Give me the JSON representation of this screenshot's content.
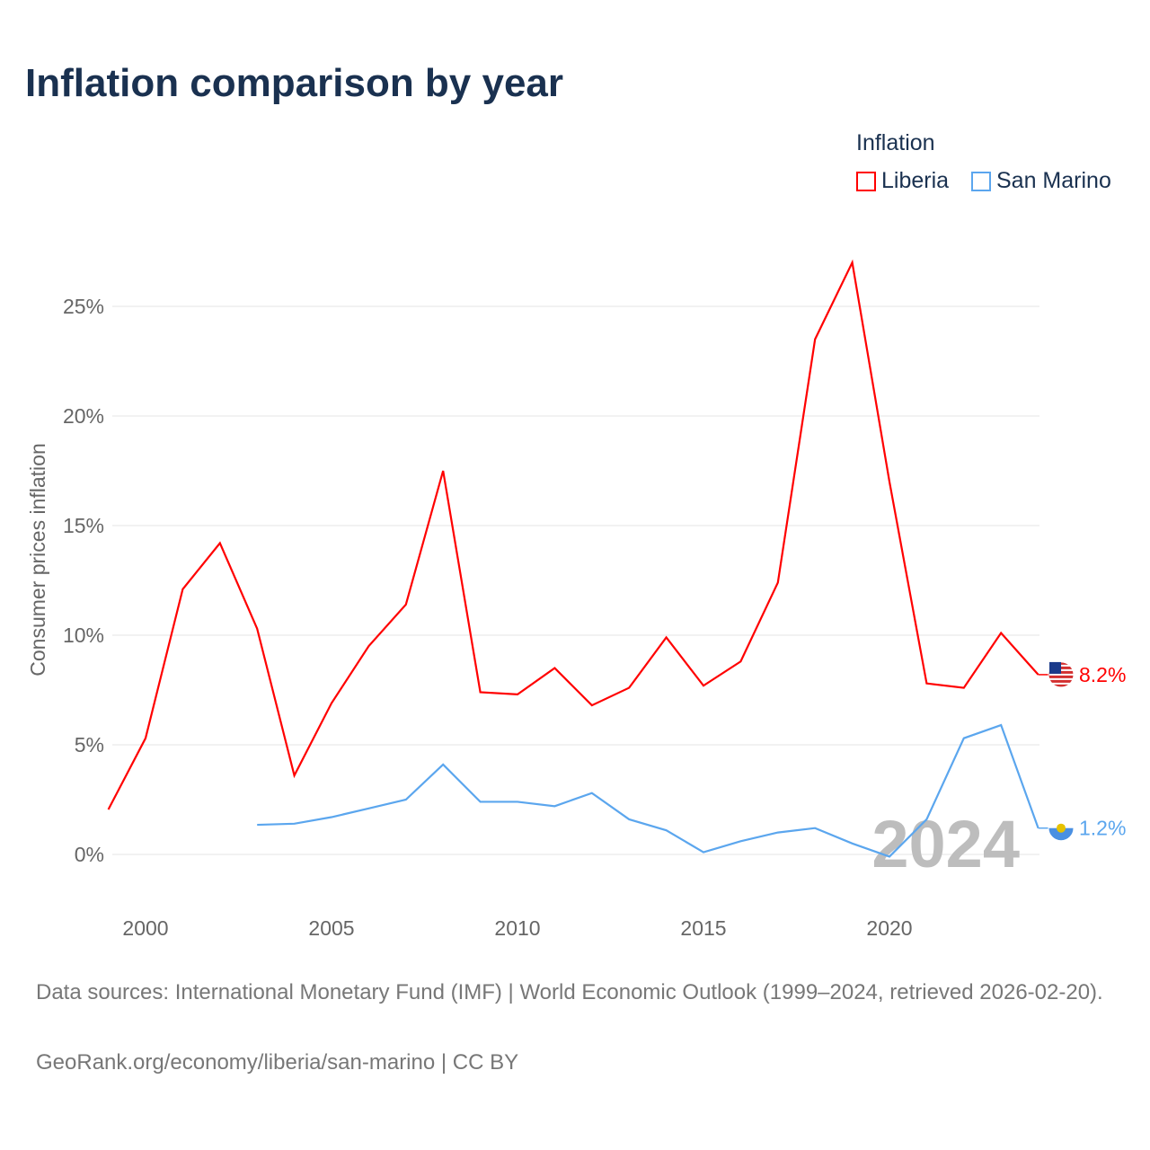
{
  "chart_data": {
    "type": "line",
    "title": "Inflation comparison by year",
    "ylabel": "Consumer prices inflation",
    "xlabel": "",
    "ylim": [
      -2,
      28
    ],
    "xlim": [
      1999,
      2024
    ],
    "y_ticks": [
      "0%",
      "5%",
      "10%",
      "15%",
      "20%",
      "25%"
    ],
    "y_tick_values": [
      0,
      5,
      10,
      15,
      20,
      25
    ],
    "x_ticks": [
      "2000",
      "2005",
      "2010",
      "2015",
      "2020"
    ],
    "x_tick_values": [
      2000,
      2005,
      2010,
      2015,
      2020
    ],
    "legend_title": "Inflation",
    "legend_position": "top-right",
    "year_watermark": "2024",
    "series": [
      {
        "name": "Liberia",
        "color": "#ff0000",
        "end_label": "8.2%",
        "x": [
          1999,
          2000,
          2001,
          2002,
          2003,
          2004,
          2005,
          2006,
          2007,
          2008,
          2009,
          2010,
          2011,
          2012,
          2013,
          2014,
          2015,
          2016,
          2017,
          2018,
          2019,
          2020,
          2021,
          2022,
          2023,
          2024
        ],
        "values": [
          2.05,
          5.3,
          12.1,
          14.2,
          10.3,
          3.6,
          6.9,
          9.5,
          11.4,
          17.5,
          7.4,
          7.3,
          8.5,
          6.8,
          7.6,
          9.9,
          7.7,
          8.8,
          12.4,
          23.5,
          27.0,
          17.0,
          7.8,
          7.6,
          10.1,
          8.2
        ]
      },
      {
        "name": "San Marino",
        "color": "#5ba6ee",
        "end_label": "1.2%",
        "x": [
          2003,
          2004,
          2005,
          2006,
          2007,
          2008,
          2009,
          2010,
          2011,
          2012,
          2013,
          2014,
          2015,
          2016,
          2017,
          2018,
          2019,
          2020,
          2021,
          2022,
          2023,
          2024
        ],
        "values": [
          1.35,
          1.4,
          1.7,
          2.1,
          2.5,
          4.1,
          2.4,
          2.4,
          2.2,
          2.8,
          1.6,
          1.1,
          0.1,
          0.6,
          1.0,
          1.2,
          0.5,
          -0.1,
          1.6,
          5.3,
          5.9,
          1.2
        ]
      }
    ]
  },
  "footer": {
    "sources": "Data sources: International Monetary Fund (IMF) | World Economic Outlook (1999–2024, retrieved 2026-02-20).",
    "credit": "GeoRank.org/economy/liberia/san-marino | CC BY"
  }
}
